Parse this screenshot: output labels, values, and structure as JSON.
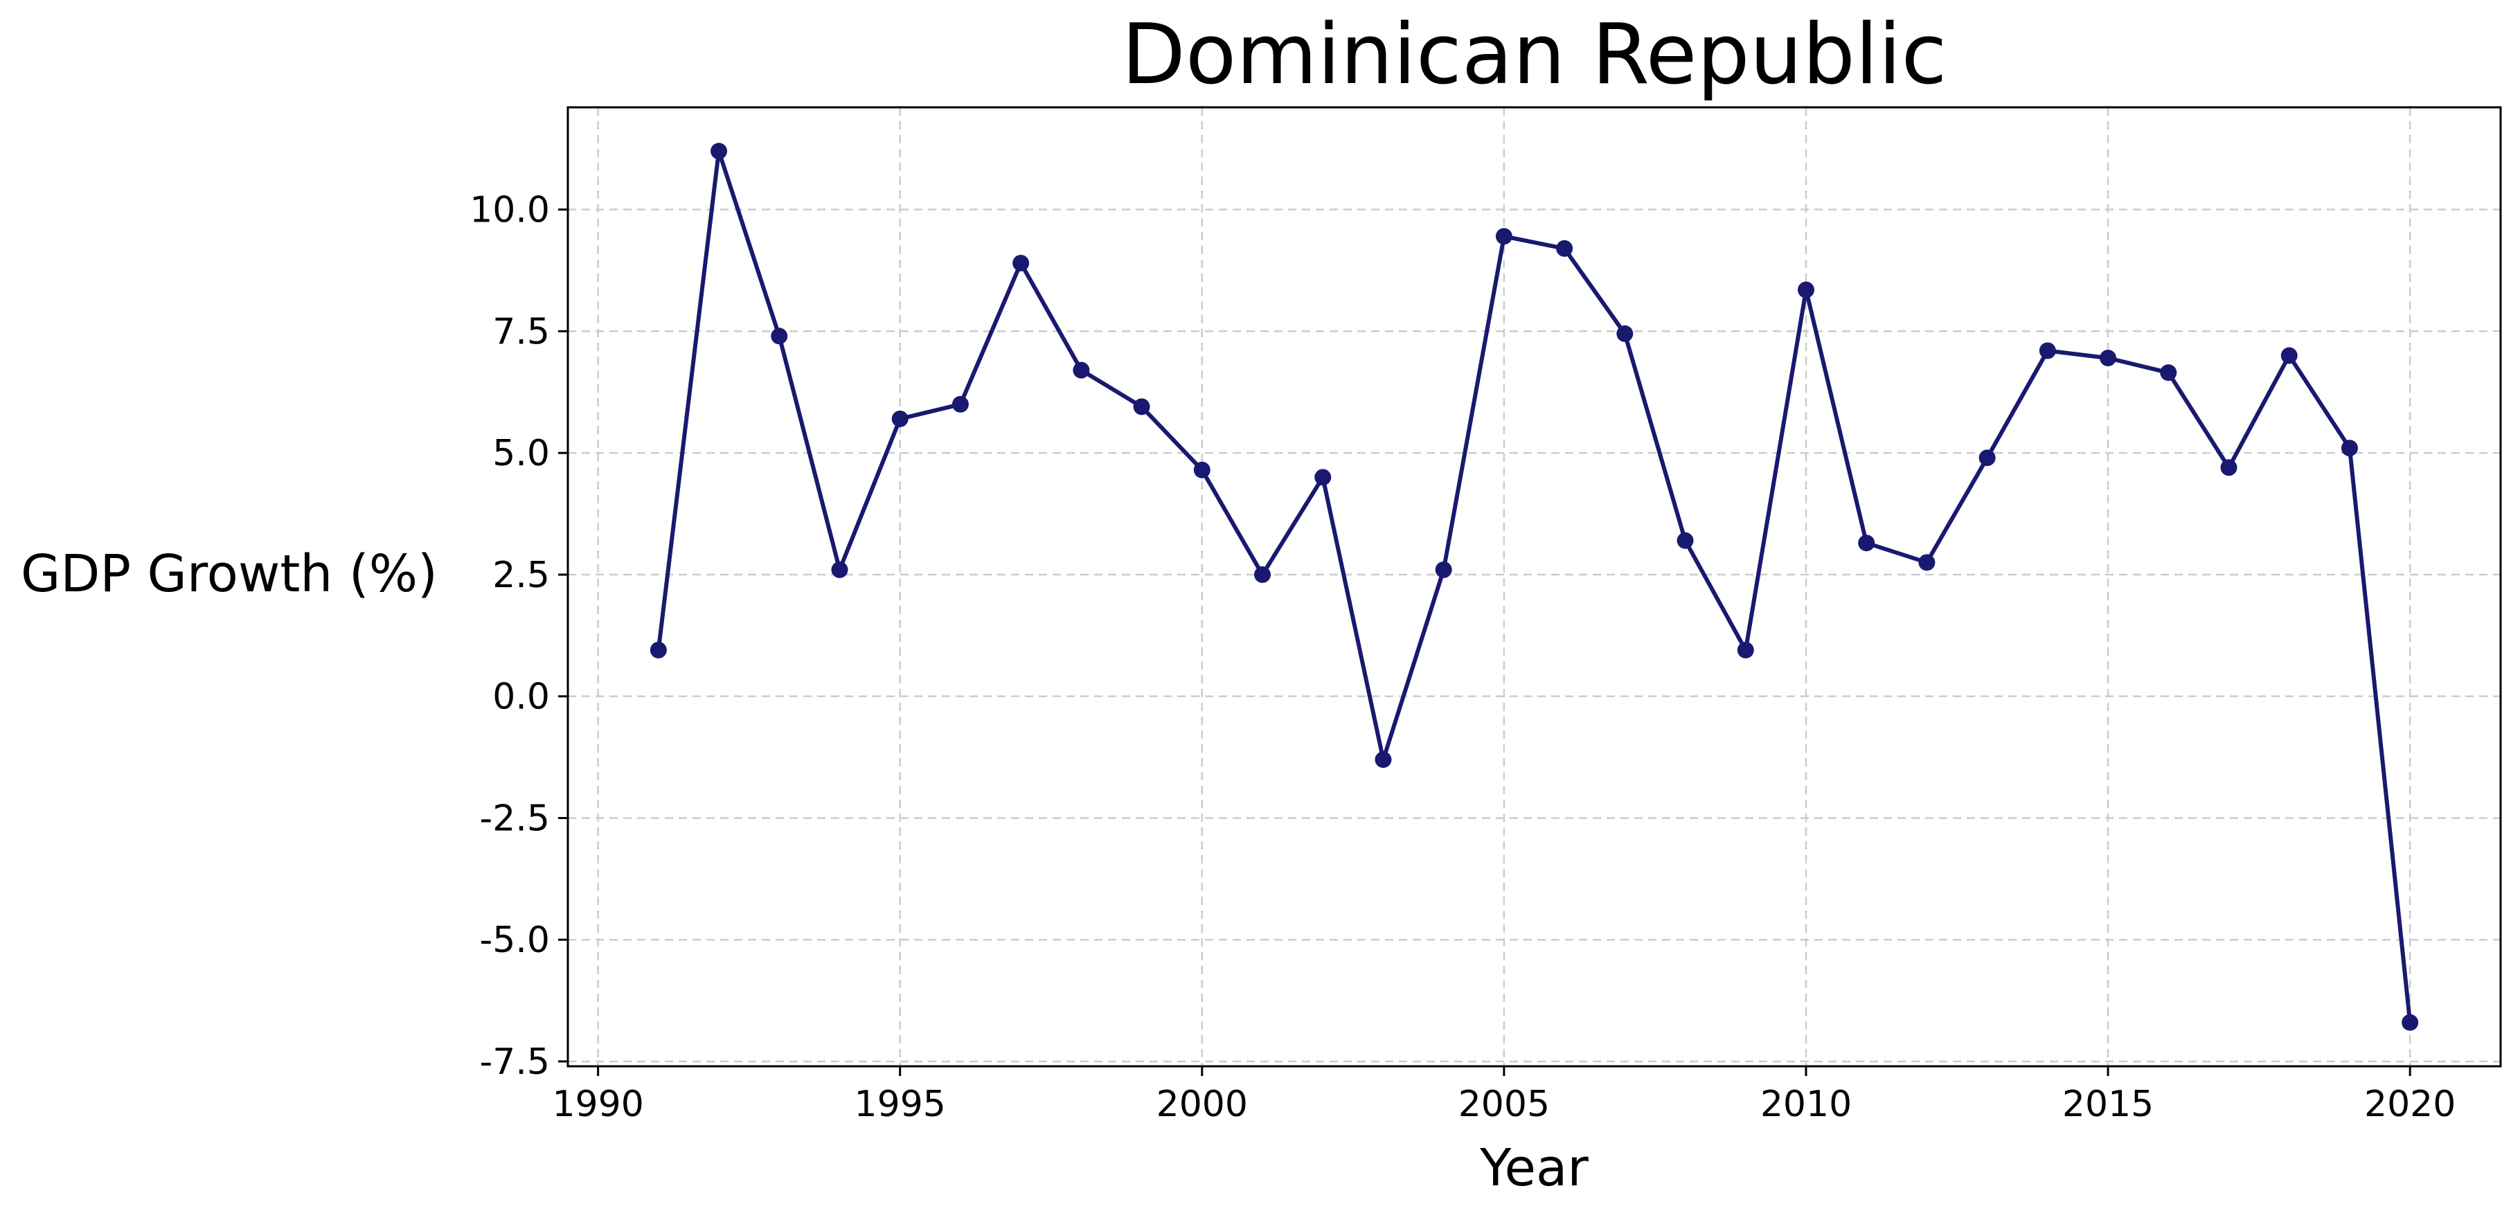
{
  "colors": {
    "series": "#191970",
    "grid": "#cccccc",
    "axis": "#000000",
    "background": "#ffffff"
  },
  "chart_data": {
    "type": "line",
    "title": "Dominican Republic",
    "xlabel": "Year",
    "ylabel": "GDP Growth (%)",
    "xlim": [
      1989.5,
      2021.5
    ],
    "ylim": [
      -7.6,
      12.1
    ],
    "x_ticks": [
      1990,
      1995,
      2000,
      2005,
      2010,
      2015,
      2020
    ],
    "y_ticks": [
      -7.5,
      -5.0,
      -2.5,
      0.0,
      2.5,
      5.0,
      7.5,
      10.0
    ],
    "x_tick_labels": [
      "1990",
      "1995",
      "2000",
      "2005",
      "2010",
      "2015",
      "2020"
    ],
    "y_tick_labels": [
      "-7.5",
      "-5.0",
      "-2.5",
      "0.0",
      "2.5",
      "5.0",
      "7.5",
      "10.0"
    ],
    "grid": true,
    "marker": "circle",
    "series": [
      {
        "x": [
          1991,
          1992,
          1993,
          1994,
          1995,
          1996,
          1997,
          1998,
          1999,
          2000,
          2001,
          2002,
          2003,
          2004,
          2005,
          2006,
          2007,
          2008,
          2009,
          2010,
          2011,
          2012,
          2013,
          2014,
          2015,
          2016,
          2017,
          2018,
          2019,
          2020
        ],
        "values": [
          0.95,
          11.2,
          7.4,
          2.6,
          5.7,
          6.0,
          8.9,
          6.7,
          5.95,
          4.65,
          2.5,
          4.5,
          -1.3,
          2.6,
          9.45,
          9.2,
          7.45,
          3.2,
          0.95,
          8.35,
          3.15,
          2.75,
          4.9,
          7.1,
          6.95,
          6.65,
          4.7,
          7.0,
          5.1,
          -6.7
        ]
      }
    ]
  }
}
